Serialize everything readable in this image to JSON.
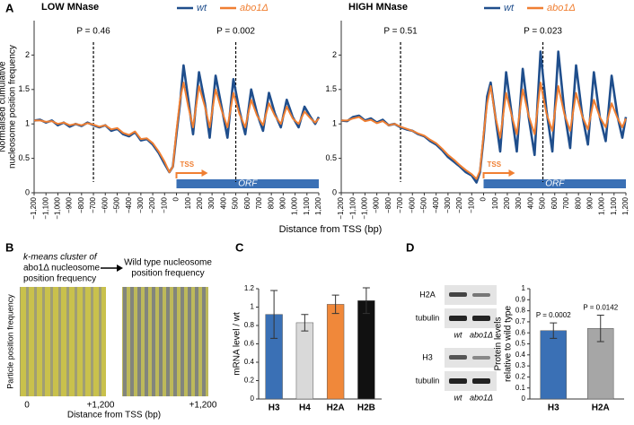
{
  "panel_labels": [
    "A",
    "B",
    "C",
    "D"
  ],
  "panel_a_xlabel": "Distance from TSS (bp)",
  "chart_data": [
    {
      "type": "line",
      "title": "LOW MNase",
      "y_label": [
        "Normalised cumulative",
        "nucleosome position frequency"
      ],
      "x": [
        -1200,
        -1150,
        -1100,
        -1050,
        -1000,
        -950,
        -900,
        -850,
        -800,
        -750,
        -700,
        -650,
        -600,
        -550,
        -500,
        -450,
        -400,
        -350,
        -300,
        -250,
        -200,
        -150,
        -100,
        -60,
        -30,
        0,
        30,
        60,
        100,
        140,
        190,
        240,
        280,
        330,
        380,
        430,
        480,
        530,
        580,
        630,
        680,
        730,
        780,
        830,
        880,
        930,
        980,
        1030,
        1080,
        1130,
        1170,
        1200
      ],
      "series": [
        {
          "name": "wt",
          "color": "#1f4e8c",
          "values": [
            1.05,
            1.06,
            1.02,
            1.05,
            0.98,
            1.02,
            0.96,
            1.0,
            0.97,
            1.02,
            0.98,
            0.95,
            0.98,
            0.9,
            0.93,
            0.85,
            0.82,
            0.88,
            0.76,
            0.78,
            0.7,
            0.58,
            0.42,
            0.3,
            0.38,
            0.85,
            1.3,
            1.85,
            1.35,
            0.85,
            1.75,
            1.3,
            0.8,
            1.7,
            1.25,
            0.8,
            1.65,
            1.2,
            0.85,
            1.5,
            1.15,
            0.9,
            1.45,
            1.15,
            0.95,
            1.35,
            1.1,
            0.95,
            1.25,
            1.1,
            1.0,
            1.1
          ]
        },
        {
          "name": "abo1Δ",
          "color": "#f07f32",
          "values": [
            1.05,
            1.05,
            1.03,
            1.04,
            1.0,
            1.02,
            0.98,
            1.0,
            0.98,
            1.01,
            0.99,
            0.96,
            0.98,
            0.92,
            0.94,
            0.87,
            0.84,
            0.89,
            0.78,
            0.79,
            0.72,
            0.6,
            0.45,
            0.3,
            0.38,
            0.9,
            1.35,
            1.6,
            1.25,
            0.95,
            1.55,
            1.25,
            0.95,
            1.5,
            1.2,
            0.95,
            1.45,
            1.15,
            0.95,
            1.35,
            1.12,
            0.98,
            1.3,
            1.12,
            1.0,
            1.25,
            1.08,
            1.0,
            1.18,
            1.08,
            1.02,
            1.08
          ]
        }
      ],
      "xlim": [
        -1200,
        1200
      ],
      "ylim": [
        0,
        2.5
      ],
      "yticks": [
        0,
        0.5,
        1,
        1.5,
        2
      ],
      "xticks": [
        {
          "value": -1200,
          "label": "−1,200"
        },
        {
          "value": -1100,
          "label": "−1,100"
        },
        {
          "value": -1000,
          "label": "−1,000"
        },
        {
          "value": -900,
          "label": "−900"
        },
        {
          "value": -800,
          "label": "−800"
        },
        {
          "value": -700,
          "label": "−700"
        },
        {
          "value": -600,
          "label": "−600"
        },
        {
          "value": -500,
          "label": "−500"
        },
        {
          "value": -400,
          "label": "−400"
        },
        {
          "value": -300,
          "label": "−300"
        },
        {
          "value": -200,
          "label": "−200"
        },
        {
          "value": -100,
          "label": "−100"
        },
        0,
        100,
        200,
        300,
        400,
        500,
        600,
        700,
        800,
        900,
        {
          "value": 1000,
          "label": "1,000"
        },
        {
          "value": 1100,
          "label": "1,100"
        },
        {
          "value": 1200,
          "label": "1,200"
        }
      ],
      "annotations": [
        {
          "text": "P = 0.46",
          "x": -700
        },
        {
          "text": "P = 0.002",
          "x": 500
        }
      ],
      "tss_label": "TSS",
      "orf_label": "ORF"
    },
    {
      "type": "line",
      "title": "HIGH MNase",
      "x": [
        -1200,
        -1150,
        -1100,
        -1050,
        -1000,
        -950,
        -900,
        -850,
        -800,
        -750,
        -700,
        -650,
        -600,
        -550,
        -500,
        -450,
        -400,
        -350,
        -300,
        -250,
        -200,
        -150,
        -100,
        -60,
        -30,
        0,
        30,
        60,
        100,
        140,
        190,
        240,
        280,
        330,
        380,
        430,
        480,
        530,
        580,
        630,
        680,
        730,
        780,
        830,
        880,
        930,
        980,
        1030,
        1080,
        1130,
        1170,
        1200
      ],
      "series": [
        {
          "name": "wt",
          "color": "#1f4e8c",
          "values": [
            1.05,
            1.04,
            1.1,
            1.12,
            1.05,
            1.08,
            1.02,
            1.06,
            0.98,
            1.0,
            0.95,
            0.92,
            0.9,
            0.85,
            0.82,
            0.75,
            0.7,
            0.62,
            0.52,
            0.45,
            0.38,
            0.3,
            0.25,
            0.15,
            0.3,
            0.8,
            1.4,
            1.6,
            1.1,
            0.6,
            1.75,
            1.1,
            0.6,
            1.8,
            1.1,
            0.55,
            2.05,
            1.2,
            0.6,
            2.05,
            1.2,
            0.65,
            1.85,
            1.15,
            0.7,
            1.75,
            1.1,
            0.75,
            1.7,
            1.1,
            0.8,
            1.1
          ]
        },
        {
          "name": "abo1Δ",
          "color": "#f07f32",
          "values": [
            1.05,
            1.05,
            1.08,
            1.1,
            1.04,
            1.06,
            1.01,
            1.04,
            0.98,
            1.0,
            0.96,
            0.93,
            0.9,
            0.86,
            0.83,
            0.77,
            0.72,
            0.64,
            0.55,
            0.48,
            0.4,
            0.33,
            0.27,
            0.2,
            0.32,
            0.85,
            1.3,
            1.55,
            1.1,
            0.8,
            1.45,
            1.1,
            0.85,
            1.5,
            1.12,
            0.85,
            1.6,
            1.15,
            0.9,
            1.55,
            1.15,
            0.9,
            1.45,
            1.12,
            0.92,
            1.35,
            1.1,
            0.95,
            1.3,
            1.08,
            0.95,
            1.08
          ]
        }
      ],
      "xlim": [
        -1200,
        1200
      ],
      "ylim": [
        0,
        2.5
      ],
      "yticks": [
        0,
        0.5,
        1,
        1.5,
        2
      ],
      "xticks": [
        {
          "value": -1200,
          "label": "−1,200"
        },
        {
          "value": -1100,
          "label": "−1,100"
        },
        {
          "value": -1000,
          "label": "−1,000"
        },
        {
          "value": -900,
          "label": "−900"
        },
        {
          "value": -800,
          "label": "−800"
        },
        {
          "value": -700,
          "label": "−700"
        },
        {
          "value": -600,
          "label": "−600"
        },
        {
          "value": -500,
          "label": "−500"
        },
        {
          "value": -400,
          "label": "−400"
        },
        {
          "value": -300,
          "label": "−300"
        },
        {
          "value": -200,
          "label": "−200"
        },
        {
          "value": -100,
          "label": "−100"
        },
        0,
        100,
        200,
        300,
        400,
        500,
        600,
        700,
        800,
        900,
        {
          "value": 1000,
          "label": "1,000"
        },
        {
          "value": 1100,
          "label": "1,100"
        },
        {
          "value": 1200,
          "label": "1,200"
        }
      ],
      "annotations": [
        {
          "text": "P = 0.51",
          "x": -700
        },
        {
          "text": "P = 0.023",
          "x": 500
        }
      ],
      "tss_label": "TSS",
      "orf_label": "ORF"
    },
    {
      "type": "bar",
      "y_label": [
        "mRNA level / wt"
      ],
      "categories": [
        "H3",
        "H4",
        "H2A",
        "H2B"
      ],
      "values": [
        0.92,
        0.83,
        1.03,
        1.07
      ],
      "errors": [
        0.26,
        0.09,
        0.1,
        0.14
      ],
      "colors": [
        "#3a70b5",
        "#d9d9d9",
        "#f0883a",
        "#111111"
      ],
      "ylim": [
        0,
        1.2
      ],
      "yticks": [
        0,
        0.2,
        0.4,
        0.6,
        0.8,
        1,
        1.2
      ]
    },
    {
      "type": "bar",
      "y_label": [
        "Protein levels",
        "relative to wild type"
      ],
      "categories": [
        "H3",
        "H2A"
      ],
      "values": [
        0.62,
        0.64
      ],
      "errors": [
        0.07,
        0.12
      ],
      "colors": [
        "#3a70b5",
        "#a6a6a6"
      ],
      "ylim": [
        0,
        1
      ],
      "yticks": [
        0,
        0.1,
        0.2,
        0.3,
        0.4,
        0.5,
        0.6,
        0.7,
        0.8,
        0.9,
        1
      ],
      "annotations": [
        "P = 0.0002",
        "P = 0.0142"
      ]
    }
  ],
  "heatmap": {
    "left_title": [
      "k-means cluster of",
      "abo1Δ nucleosome",
      "position frequency"
    ],
    "right_title": [
      "Wild type nucleosome",
      "position frequency"
    ],
    "y_label": "Particle position frequency",
    "x_start": "0",
    "x_end_left": "+1,200",
    "x_end_right": "+1,200",
    "x_label": "Distance from TSS (bp)"
  },
  "blot": {
    "top": {
      "protein": "H2A",
      "loading": "tubulin",
      "lanes": [
        "wt",
        "abo1Δ"
      ]
    },
    "bottom": {
      "protein": "H3",
      "loading": "tubulin",
      "lanes": [
        "wt",
        "abo1Δ"
      ]
    }
  }
}
